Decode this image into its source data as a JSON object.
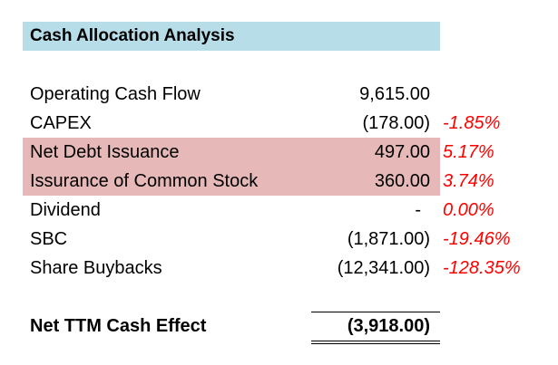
{
  "title": "Cash Allocation Analysis",
  "colors": {
    "title_band": "#b6dde8",
    "highlight_band": "#e6b8b7",
    "negative_pct": "#ff0000"
  },
  "rows": [
    {
      "label": "Operating Cash Flow",
      "value": "9,615.00",
      "pct": "",
      "highlight": false
    },
    {
      "label": "CAPEX",
      "value": "(178.00)",
      "pct": "-1.85%",
      "highlight": false
    },
    {
      "label": "Net Debt Issuance",
      "value": "497.00",
      "pct": "5.17%",
      "highlight": true
    },
    {
      "label": "Issurance of Common Stock",
      "value": "360.00",
      "pct": "3.74%",
      "highlight": true
    },
    {
      "label": "Dividend",
      "value": "-",
      "pct": "0.00%",
      "highlight": false
    },
    {
      "label": "SBC",
      "value": "(1,871.00)",
      "pct": "-19.46%",
      "highlight": false
    },
    {
      "label": "Share Buybacks",
      "value": "(12,341.00)",
      "pct": "-128.35%",
      "highlight": false
    }
  ],
  "total": {
    "label": "Net TTM Cash Effect",
    "value": "(3,918.00)"
  }
}
